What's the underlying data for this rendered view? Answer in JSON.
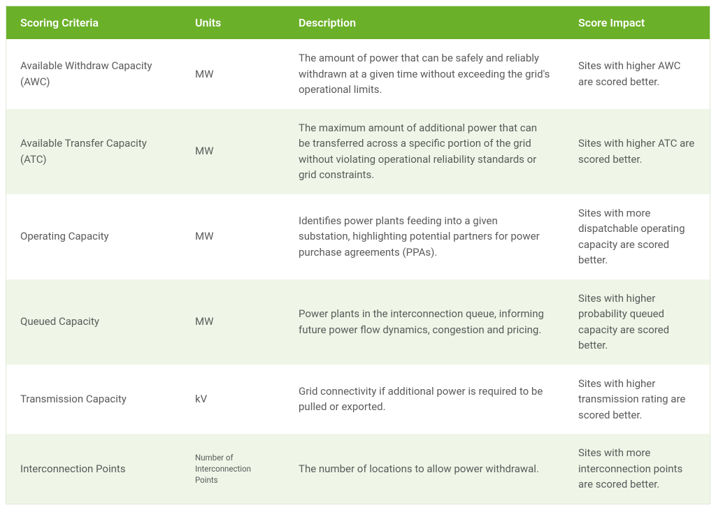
{
  "table": {
    "header_bg": "#6bb029",
    "header_text_color": "#ffffff",
    "row_odd_bg": "#ffffff",
    "row_even_bg": "#eff6e7",
    "text_color": "#5a5a5a",
    "columns": {
      "criteria": "Scoring Criteria",
      "units": "Units",
      "description": "Description",
      "impact": "Score Impact"
    },
    "rows": [
      {
        "criteria": "Available Withdraw Capacity (AWC)",
        "units": "MW",
        "units_small": false,
        "description": "The amount of power that can be safely and reliably withdrawn at a given time without exceeding the grid's operational limits.",
        "impact": "Sites with higher AWC are scored better."
      },
      {
        "criteria": "Available Transfer Capacity (ATC)",
        "units": "MW",
        "units_small": false,
        "description": "The maximum amount of additional power that can be transferred across a specific portion of the grid without violating operational reliability standards or grid constraints.",
        "impact": "Sites with higher ATC are scored better."
      },
      {
        "criteria": "Operating Capacity",
        "units": "MW",
        "units_small": false,
        "description": "Identifies power plants feeding into a given substation, highlighting potential partners for power purchase agreements (PPAs).",
        "impact": "Sites with more dispatchable operating capacity are scored better."
      },
      {
        "criteria": "Queued Capacity",
        "units": "MW",
        "units_small": false,
        "description": "Power plants in the interconnection queue, informing future power flow dynamics, congestion and pricing.",
        "impact": "Sites with higher probability queued capacity are scored better."
      },
      {
        "criteria": "Transmission Capacity",
        "units": "kV",
        "units_small": false,
        "description": "Grid connectivity if additional power is required to be pulled or exported.",
        "impact": "Sites with higher transmission rating are scored better."
      },
      {
        "criteria": "Interconnection Points",
        "units": "Number of Interconnection Points",
        "units_small": true,
        "description": "The number of locations to allow power withdrawal.",
        "impact": "Sites with more interconnection points are scored better."
      }
    ]
  }
}
